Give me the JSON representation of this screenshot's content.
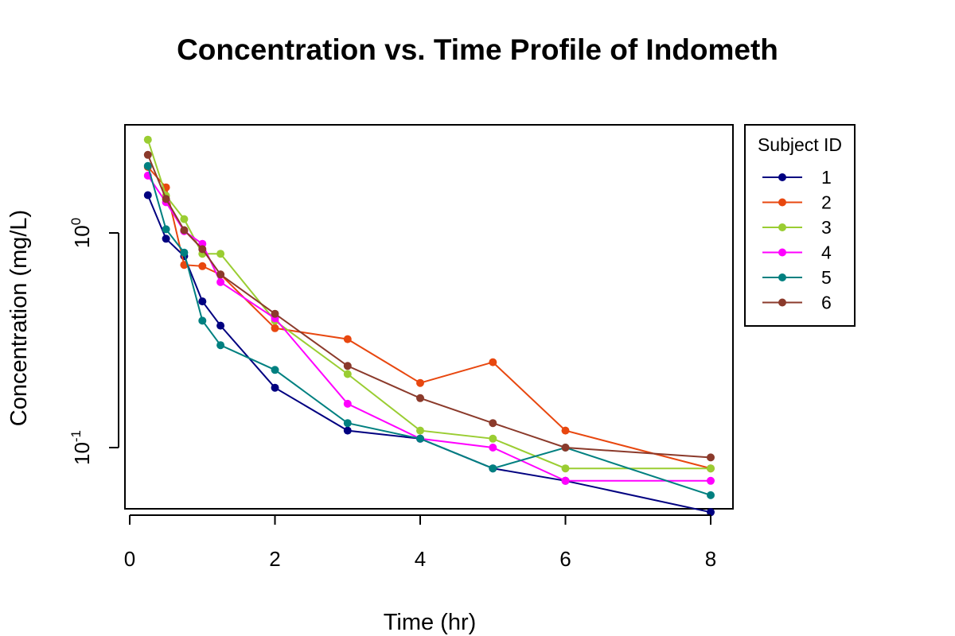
{
  "chart_data": {
    "type": "line",
    "title": "Concentration vs. Time Profile of Indometh",
    "xlabel": "Time (hr)",
    "ylabel": "Concentration (mg/L)",
    "x_ticks": [
      0,
      2,
      4,
      6,
      8
    ],
    "y_scale": "log",
    "y_ticks": [
      {
        "value": 1.0,
        "base": "10",
        "exp": "0"
      },
      {
        "value": 0.1,
        "base": "10",
        "exp": "-1"
      }
    ],
    "xlim": [
      0,
      8
    ],
    "ylim": [
      0.05,
      3.0
    ],
    "grid": false,
    "legend": {
      "title": "Subject ID",
      "position": "outside-top-right"
    },
    "x": [
      0.25,
      0.5,
      0.75,
      1,
      1.25,
      2,
      3,
      4,
      5,
      6,
      8
    ],
    "series": [
      {
        "name": "1",
        "color": "#000080",
        "values": [
          1.5,
          0.94,
          0.78,
          0.48,
          0.37,
          0.19,
          0.12,
          0.11,
          0.08,
          0.07,
          0.05
        ]
      },
      {
        "name": "2",
        "color": "#E8470F",
        "values": [
          2.03,
          1.63,
          0.71,
          0.7,
          0.64,
          0.36,
          0.32,
          0.2,
          0.25,
          0.12,
          0.08
        ]
      },
      {
        "name": "3",
        "color": "#9ACD32",
        "values": [
          2.72,
          1.49,
          1.16,
          0.8,
          0.8,
          0.39,
          0.22,
          0.12,
          0.11,
          0.08,
          0.08
        ]
      },
      {
        "name": "4",
        "color": "#FF00FF",
        "values": [
          1.85,
          1.39,
          1.02,
          0.89,
          0.59,
          0.4,
          0.16,
          0.11,
          0.1,
          0.07,
          0.07
        ]
      },
      {
        "name": "5",
        "color": "#008080",
        "values": [
          2.05,
          1.04,
          0.81,
          0.39,
          0.3,
          0.23,
          0.13,
          0.11,
          0.08,
          0.1,
          0.06
        ]
      },
      {
        "name": "6",
        "color": "#8B3A2B",
        "values": [
          2.31,
          1.44,
          1.03,
          0.84,
          0.64,
          0.42,
          0.24,
          0.17,
          0.13,
          0.1,
          0.09
        ]
      }
    ]
  }
}
